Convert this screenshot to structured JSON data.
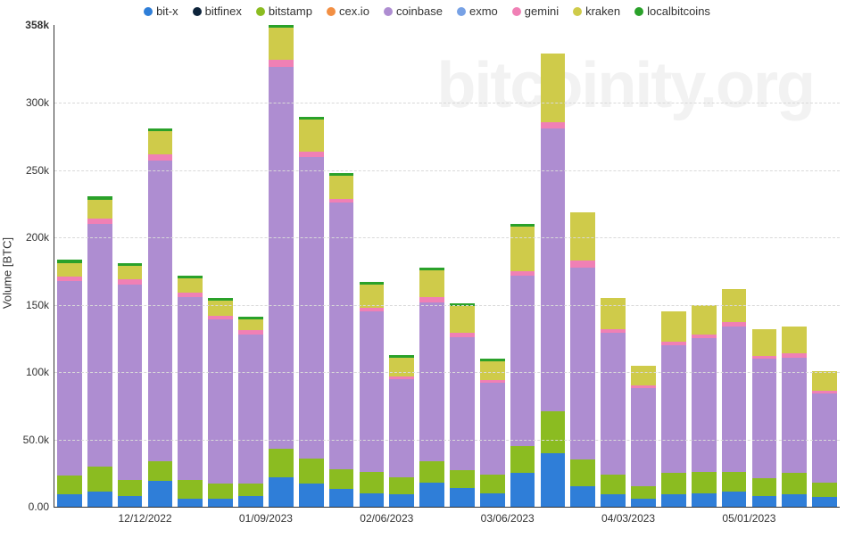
{
  "chart": {
    "type": "stacked-bar",
    "watermark": "bitcoinity.org",
    "ylabel": "Volume [BTC]",
    "ylim": [
      0,
      358000
    ],
    "ymax_label": "358k",
    "yticks": [
      {
        "v": 0,
        "label": "0.00"
      },
      {
        "v": 50000,
        "label": "50.0k"
      },
      {
        "v": 100000,
        "label": "100k"
      },
      {
        "v": 150000,
        "label": "150k"
      },
      {
        "v": 200000,
        "label": "200k"
      },
      {
        "v": 250000,
        "label": "250k"
      },
      {
        "v": 300000,
        "label": "300k"
      },
      {
        "v": 358000,
        "label": "358k",
        "max": true
      }
    ],
    "xticks": [
      {
        "between": [
          2,
          3
        ],
        "label": "12/12/2022"
      },
      {
        "between": [
          6,
          7
        ],
        "label": "01/09/2023"
      },
      {
        "between": [
          10,
          11
        ],
        "label": "02/06/2023"
      },
      {
        "between": [
          14,
          15
        ],
        "label": "03/06/2023"
      },
      {
        "between": [
          18,
          19
        ],
        "label": "04/03/2023"
      },
      {
        "between": [
          22,
          23
        ],
        "label": "05/01/2023"
      }
    ],
    "bar_width_ratio": 0.82,
    "background_color": "#ffffff",
    "grid_color": "#d9d9d9",
    "axis_color": "#333333",
    "series": [
      {
        "key": "bit-x",
        "label": "bit-x",
        "color": "#2f7ed8"
      },
      {
        "key": "bitfinex",
        "label": "bitfinex",
        "color": "#0d233a"
      },
      {
        "key": "bitstamp",
        "label": "bitstamp",
        "color": "#8bbc21"
      },
      {
        "key": "cex.io",
        "label": "cex.io",
        "color": "#f28f43"
      },
      {
        "key": "coinbase",
        "label": "coinbase",
        "color": "#ae8dd1"
      },
      {
        "key": "exmo",
        "label": "exmo",
        "color": "#77a1e5"
      },
      {
        "key": "gemini",
        "label": "gemini",
        "color": "#f080b5"
      },
      {
        "key": "kraken",
        "label": "kraken",
        "color": "#cfcb4a"
      },
      {
        "key": "localbitcoins",
        "label": "localbitcoins",
        "color": "#2aa12a"
      }
    ],
    "stack_order": [
      "bit-x",
      "bitfinex",
      "bitstamp",
      "cex.io",
      "coinbase",
      "exmo",
      "gemini",
      "kraken",
      "localbitcoins"
    ],
    "legend_order": [
      "bit-x",
      "bitfinex",
      "bitstamp",
      "cex.io",
      "coinbase",
      "exmo",
      "gemini",
      "kraken",
      "localbitcoins"
    ],
    "bars": [
      {
        "bit-x": 9000,
        "bitstamp": 14000,
        "coinbase": 145000,
        "gemini": 3000,
        "kraken": 10000,
        "localbitcoins": 3000
      },
      {
        "bit-x": 11000,
        "bitstamp": 19000,
        "coinbase": 180000,
        "gemini": 4000,
        "kraken": 14000,
        "localbitcoins": 3000
      },
      {
        "bit-x": 8000,
        "bitstamp": 12000,
        "coinbase": 145000,
        "gemini": 4000,
        "kraken": 10000,
        "localbitcoins": 2000
      },
      {
        "bit-x": 19000,
        "bitstamp": 15000,
        "coinbase": 223000,
        "gemini": 5000,
        "kraken": 17000,
        "localbitcoins": 2000
      },
      {
        "bit-x": 6000,
        "bitstamp": 14000,
        "coinbase": 136000,
        "gemini": 3000,
        "kraken": 11000,
        "localbitcoins": 2000
      },
      {
        "bit-x": 6000,
        "bitstamp": 11000,
        "coinbase": 122000,
        "gemini": 3000,
        "kraken": 11000,
        "localbitcoins": 2000
      },
      {
        "bit-x": 8000,
        "bitstamp": 9000,
        "coinbase": 111000,
        "gemini": 3000,
        "kraken": 8000,
        "localbitcoins": 2000
      },
      {
        "bit-x": 22000,
        "bitstamp": 21000,
        "coinbase": 284000,
        "gemini": 5000,
        "kraken": 24000,
        "localbitcoins": 2000
      },
      {
        "bit-x": 17000,
        "bitstamp": 19000,
        "coinbase": 224000,
        "gemini": 4000,
        "kraken": 24000,
        "localbitcoins": 2000
      },
      {
        "bit-x": 13000,
        "bitstamp": 15000,
        "coinbase": 198000,
        "gemini": 3000,
        "kraken": 17000,
        "localbitcoins": 2000
      },
      {
        "bit-x": 10000,
        "bitstamp": 16000,
        "coinbase": 119000,
        "gemini": 3000,
        "kraken": 17000,
        "localbitcoins": 2000
      },
      {
        "bit-x": 9000,
        "bitstamp": 13000,
        "coinbase": 73000,
        "gemini": 2000,
        "kraken": 14000,
        "localbitcoins": 2000
      },
      {
        "bit-x": 18000,
        "bitstamp": 16000,
        "coinbase": 118000,
        "gemini": 4000,
        "kraken": 20000,
        "localbitcoins": 2000
      },
      {
        "bit-x": 14000,
        "bitstamp": 13000,
        "coinbase": 99000,
        "gemini": 3000,
        "kraken": 20000,
        "localbitcoins": 2000
      },
      {
        "bit-x": 10000,
        "bitstamp": 14000,
        "coinbase": 68000,
        "gemini": 2000,
        "kraken": 14000,
        "localbitcoins": 2000
      },
      {
        "bit-x": 25000,
        "bitstamp": 20000,
        "coinbase": 127000,
        "gemini": 3000,
        "kraken": 33000,
        "localbitcoins": 2000
      },
      {
        "bit-x": 40000,
        "bitstamp": 31000,
        "coinbase": 210000,
        "gemini": 5000,
        "kraken": 51000,
        "localbitcoins": 0
      },
      {
        "bit-x": 15000,
        "bitstamp": 20000,
        "coinbase": 143000,
        "gemini": 5000,
        "kraken": 36000,
        "localbitcoins": 0
      },
      {
        "bit-x": 9000,
        "bitstamp": 15000,
        "coinbase": 105000,
        "gemini": 3000,
        "kraken": 23000,
        "localbitcoins": 0
      },
      {
        "bit-x": 6000,
        "bitstamp": 9000,
        "coinbase": 73000,
        "gemini": 2000,
        "kraken": 15000,
        "localbitcoins": 0
      },
      {
        "bit-x": 9000,
        "bitstamp": 16000,
        "coinbase": 95000,
        "gemini": 3000,
        "kraken": 22000,
        "localbitcoins": 0
      },
      {
        "bit-x": 10000,
        "bitstamp": 16000,
        "coinbase": 99000,
        "gemini": 3000,
        "kraken": 22000,
        "localbitcoins": 0
      },
      {
        "bit-x": 11000,
        "bitstamp": 15000,
        "coinbase": 108000,
        "gemini": 3000,
        "kraken": 25000,
        "localbitcoins": 0
      },
      {
        "bit-x": 8000,
        "bitstamp": 13000,
        "coinbase": 89000,
        "gemini": 2000,
        "kraken": 20000,
        "localbitcoins": 0
      },
      {
        "bit-x": 9000,
        "bitstamp": 16000,
        "coinbase": 86000,
        "gemini": 3000,
        "kraken": 20000,
        "localbitcoins": 0
      },
      {
        "bit-x": 7000,
        "bitstamp": 11000,
        "coinbase": 66000,
        "gemini": 2000,
        "kraken": 15000,
        "localbitcoins": 0
      }
    ]
  }
}
